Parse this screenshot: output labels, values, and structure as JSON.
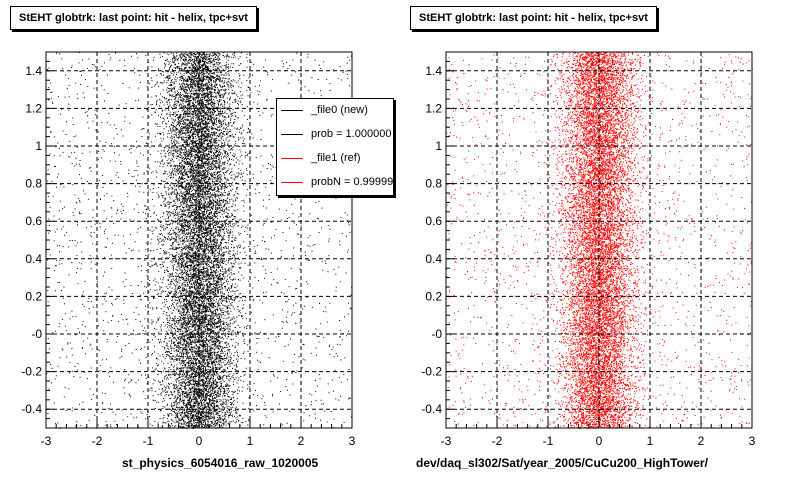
{
  "chart_data": [
    {
      "type": "scatter",
      "title": "StEHT globtrk: last point: hit - helix, tpc+svt",
      "xlabel": "st_physics_6054016_raw_1020005",
      "ylabel": "",
      "xlim": [
        -3,
        3
      ],
      "ylim": [
        -0.5,
        1.5
      ],
      "x_ticks": [
        "-3",
        "-2",
        "-1",
        "0",
        "1",
        "2",
        "3"
      ],
      "y_ticks": [
        "-0.4",
        "-0.2",
        "-0",
        "0.2",
        "0.4",
        "0.6",
        "0.8",
        "1",
        "1.2",
        "1.4"
      ],
      "grid": true,
      "series": [
        {
          "name": "_file0 (new)",
          "color": "#000000",
          "distribution": {
            "x_center": 0.0,
            "x_sigma": 0.35,
            "y_range": [
              -0.5,
              1.5
            ]
          }
        }
      ],
      "legend": {
        "placement": "top-right",
        "entries": [
          {
            "label": "_file0 (new)",
            "color": "#000000"
          },
          {
            "label": "prob = 1.000000",
            "color": "#000000"
          },
          {
            "label": "_file1 (ref)",
            "color": "#ff0000"
          },
          {
            "label": "probN = 0.999995",
            "color": "#ff0000"
          }
        ]
      }
    },
    {
      "type": "scatter",
      "title": "StEHT globtrk: last point: hit - helix, tpc+svt",
      "xlabel": "dev/daq_sl302/Sat/year_2005/CuCu200_HighTower/",
      "ylabel": "",
      "xlim": [
        -3,
        3
      ],
      "ylim": [
        -0.5,
        1.5
      ],
      "x_ticks": [
        "-3",
        "-2",
        "-1",
        "0",
        "1",
        "2",
        "3"
      ],
      "y_ticks": [
        "-0.4",
        "-0.2",
        "-0",
        "0.2",
        "0.4",
        "0.6",
        "0.8",
        "1",
        "1.2",
        "1.4"
      ],
      "grid": true,
      "series": [
        {
          "name": "_file1 (ref)",
          "color": "#ff0000",
          "distribution": {
            "x_center": 0.0,
            "x_sigma": 0.35,
            "y_range": [
              -0.5,
              1.5
            ]
          }
        }
      ]
    }
  ]
}
